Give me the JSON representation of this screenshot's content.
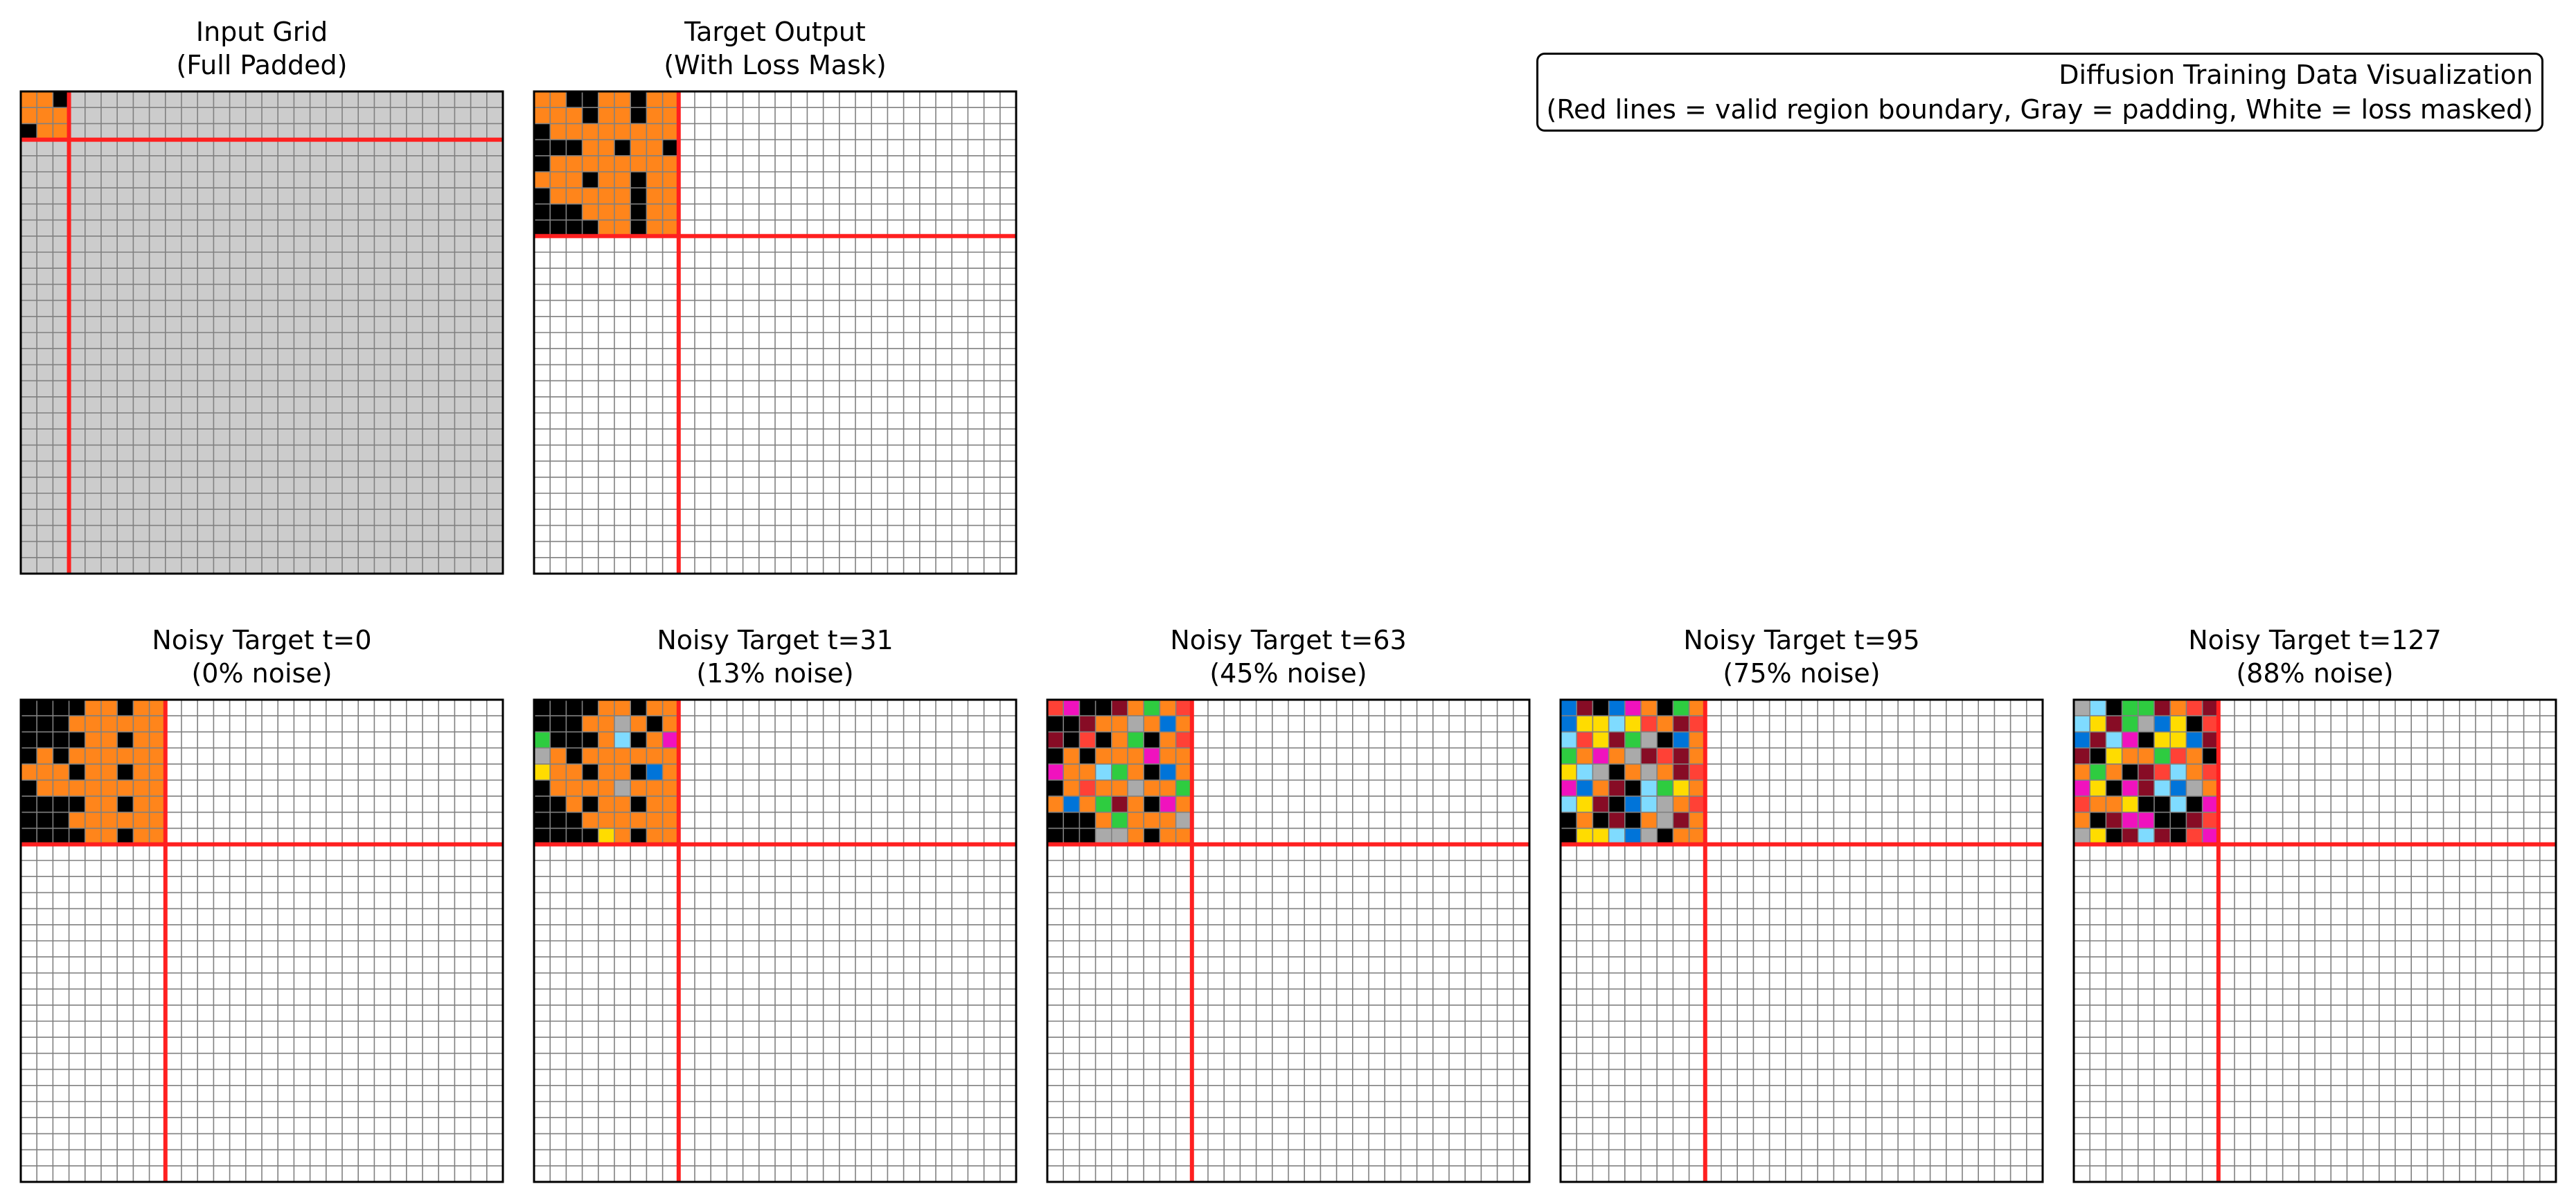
{
  "colors": {
    "palette": [
      "#000000",
      "#0074D9",
      "#FF4136",
      "#2ECC40",
      "#FFDC00",
      "#AAAAAA",
      "#F012BE",
      "#FF851B",
      "#7FDBFF",
      "#870C25"
    ],
    "padding": "#cccccc",
    "masked": "#ffffff",
    "boundary": "#ff2020",
    "gridline": "#808080"
  },
  "info_box": {
    "line1": "Diffusion Training Data Visualization",
    "line2": "(Red lines = valid region boundary, Gray = padding, White = loss masked)"
  },
  "chart_data": [
    {
      "type": "heatmap",
      "grid_size": 30,
      "title_line1": "Input Grid",
      "title_line2": "(Full Padded)",
      "valid_rows": 3,
      "valid_cols": 3,
      "fill_outside": "padding",
      "cells": [
        [
          7,
          7,
          0
        ],
        [
          7,
          7,
          7
        ],
        [
          0,
          7,
          7
        ]
      ]
    },
    {
      "type": "heatmap",
      "grid_size": 30,
      "title_line1": "Target Output",
      "title_line2": "(With Loss Mask)",
      "valid_rows": 9,
      "valid_cols": 9,
      "fill_outside": "masked",
      "cells": [
        [
          7,
          7,
          0,
          0,
          7,
          7,
          0,
          7,
          7
        ],
        [
          7,
          7,
          7,
          0,
          7,
          7,
          0,
          7,
          7
        ],
        [
          0,
          7,
          7,
          7,
          7,
          7,
          7,
          7,
          7
        ],
        [
          0,
          0,
          0,
          7,
          7,
          0,
          7,
          7,
          0
        ],
        [
          0,
          7,
          7,
          7,
          7,
          7,
          7,
          7,
          7
        ],
        [
          7,
          7,
          7,
          0,
          7,
          7,
          0,
          7,
          7
        ],
        [
          0,
          7,
          7,
          7,
          7,
          7,
          0,
          7,
          7
        ],
        [
          0,
          0,
          0,
          7,
          7,
          7,
          0,
          7,
          7
        ],
        [
          0,
          0,
          0,
          0,
          7,
          7,
          0,
          7,
          7
        ]
      ]
    },
    {
      "type": "heatmap",
      "grid_size": 30,
      "title_line1": "Noisy Target t=0",
      "title_line2": "(0% noise)",
      "valid_rows": 9,
      "valid_cols": 9,
      "fill_outside": "masked",
      "cells": [
        [
          0,
          0,
          0,
          0,
          7,
          7,
          0,
          7,
          7
        ],
        [
          0,
          0,
          0,
          7,
          7,
          7,
          7,
          7,
          7
        ],
        [
          0,
          0,
          0,
          0,
          7,
          7,
          0,
          7,
          7
        ],
        [
          0,
          7,
          0,
          7,
          7,
          7,
          7,
          7,
          7
        ],
        [
          7,
          7,
          7,
          0,
          7,
          7,
          0,
          7,
          7
        ],
        [
          0,
          7,
          7,
          7,
          7,
          7,
          7,
          7,
          7
        ],
        [
          0,
          0,
          0,
          0,
          7,
          7,
          0,
          7,
          7
        ],
        [
          0,
          0,
          0,
          7,
          7,
          7,
          7,
          7,
          7
        ],
        [
          0,
          0,
          0,
          0,
          7,
          7,
          0,
          7,
          7
        ]
      ]
    },
    {
      "type": "heatmap",
      "grid_size": 30,
      "title_line1": "Noisy Target t=31",
      "title_line2": "(13% noise)",
      "valid_rows": 9,
      "valid_cols": 9,
      "fill_outside": "masked",
      "cells": [
        [
          0,
          0,
          0,
          0,
          7,
          7,
          0,
          7,
          7
        ],
        [
          0,
          0,
          0,
          7,
          7,
          5,
          7,
          0,
          7
        ],
        [
          3,
          0,
          0,
          0,
          7,
          8,
          0,
          7,
          6
        ],
        [
          5,
          7,
          0,
          7,
          7,
          7,
          7,
          7,
          7
        ],
        [
          4,
          7,
          7,
          0,
          7,
          7,
          0,
          1,
          7
        ],
        [
          0,
          7,
          7,
          7,
          7,
          5,
          7,
          7,
          7
        ],
        [
          0,
          0,
          7,
          0,
          7,
          7,
          0,
          7,
          7
        ],
        [
          0,
          0,
          0,
          7,
          7,
          7,
          7,
          7,
          7
        ],
        [
          0,
          0,
          0,
          0,
          4,
          7,
          0,
          7,
          7
        ]
      ]
    },
    {
      "type": "heatmap",
      "grid_size": 30,
      "title_line1": "Noisy Target t=63",
      "title_line2": "(45% noise)",
      "valid_rows": 9,
      "valid_cols": 9,
      "fill_outside": "masked",
      "cells": [
        [
          2,
          6,
          0,
          0,
          9,
          7,
          3,
          7,
          2
        ],
        [
          0,
          0,
          9,
          7,
          7,
          5,
          7,
          1,
          7
        ],
        [
          9,
          0,
          2,
          0,
          7,
          3,
          0,
          7,
          2
        ],
        [
          0,
          7,
          0,
          7,
          7,
          7,
          6,
          7,
          7
        ],
        [
          6,
          7,
          7,
          8,
          3,
          7,
          0,
          1,
          7
        ],
        [
          0,
          7,
          2,
          7,
          7,
          5,
          7,
          7,
          3
        ],
        [
          7,
          1,
          7,
          3,
          9,
          7,
          0,
          6,
          7
        ],
        [
          0,
          0,
          0,
          7,
          3,
          7,
          7,
          7,
          5
        ],
        [
          0,
          0,
          0,
          5,
          5,
          7,
          0,
          7,
          7
        ]
      ]
    },
    {
      "type": "heatmap",
      "grid_size": 30,
      "title_line1": "Noisy Target t=95",
      "title_line2": "(75% noise)",
      "valid_rows": 9,
      "valid_cols": 9,
      "fill_outside": "masked",
      "cells": [
        [
          1,
          9,
          0,
          1,
          6,
          7,
          0,
          3,
          7
        ],
        [
          1,
          4,
          4,
          8,
          4,
          2,
          7,
          9,
          2
        ],
        [
          8,
          2,
          4,
          9,
          3,
          5,
          0,
          1,
          7
        ],
        [
          3,
          7,
          6,
          7,
          5,
          9,
          2,
          9,
          7
        ],
        [
          4,
          8,
          5,
          0,
          7,
          5,
          7,
          9,
          2
        ],
        [
          6,
          1,
          7,
          9,
          0,
          8,
          3,
          4,
          7
        ],
        [
          8,
          4,
          9,
          0,
          1,
          8,
          5,
          7,
          2
        ],
        [
          0,
          7,
          0,
          9,
          0,
          7,
          5,
          9,
          7
        ],
        [
          0,
          4,
          4,
          8,
          1,
          5,
          0,
          7,
          7
        ]
      ]
    },
    {
      "type": "heatmap",
      "grid_size": 30,
      "title_line1": "Noisy Target t=127",
      "title_line2": "(88% noise)",
      "valid_rows": 9,
      "valid_cols": 9,
      "fill_outside": "masked",
      "cells": [
        [
          5,
          8,
          0,
          3,
          3,
          9,
          7,
          2,
          9
        ],
        [
          8,
          4,
          9,
          3,
          5,
          1,
          4,
          0,
          2
        ],
        [
          1,
          9,
          8,
          6,
          0,
          4,
          4,
          1,
          9
        ],
        [
          9,
          0,
          4,
          7,
          7,
          3,
          2,
          7,
          0
        ],
        [
          7,
          3,
          7,
          0,
          9,
          2,
          8,
          7,
          2
        ],
        [
          6,
          4,
          0,
          6,
          9,
          8,
          1,
          5,
          7
        ],
        [
          2,
          7,
          7,
          4,
          0,
          0,
          8,
          0,
          6
        ],
        [
          7,
          0,
          9,
          6,
          6,
          0,
          0,
          9,
          2
        ],
        [
          5,
          4,
          0,
          9,
          8,
          9,
          0,
          2,
          6
        ]
      ]
    }
  ]
}
